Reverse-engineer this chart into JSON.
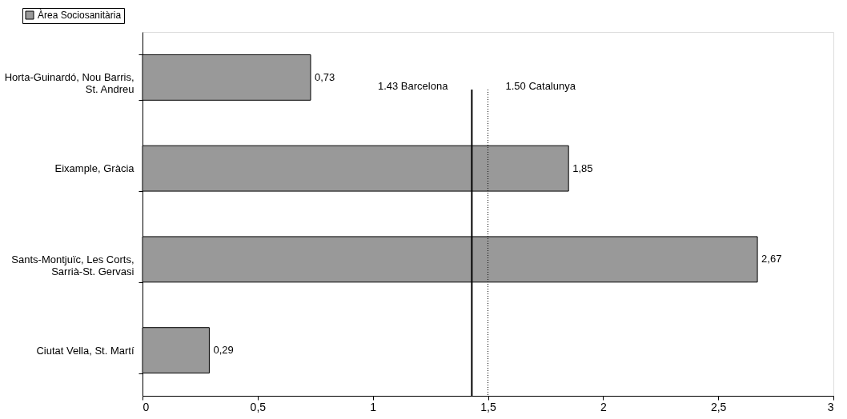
{
  "chart_data": {
    "type": "bar",
    "orientation": "horizontal",
    "categories": [
      "Horta-Guinardó, Nou Barris,\nSt. Andreu",
      "Eixample, Gràcia",
      "Sants-Montjuïc, Les Corts,\nSarrià-St. Gervasi",
      "Ciutat Vella, St. Martí"
    ],
    "series": [
      {
        "name": "Àrea Sociosanitària",
        "color": "#999999",
        "values": [
          0.73,
          1.85,
          2.67,
          0.29
        ],
        "value_labels": [
          "0,73",
          "1,85",
          "2,67",
          "0,29"
        ]
      }
    ],
    "xlim": [
      0,
      3
    ],
    "xticks": [
      0,
      {
        "value": 0.5,
        "label": "0,5"
      },
      1,
      {
        "value": 1.5,
        "label": "1,5"
      },
      2,
      {
        "value": 2.5,
        "label": "2,5"
      },
      3
    ],
    "ref_lines": [
      {
        "axis": "x",
        "value": 1.43,
        "label": "1.43 Barcelona",
        "line_style": "solid"
      },
      {
        "axis": "x",
        "value": 1.5,
        "label": "1.50 Catalunya",
        "line_style": "dotted"
      }
    ],
    "legend": "top left",
    "grid": false
  }
}
